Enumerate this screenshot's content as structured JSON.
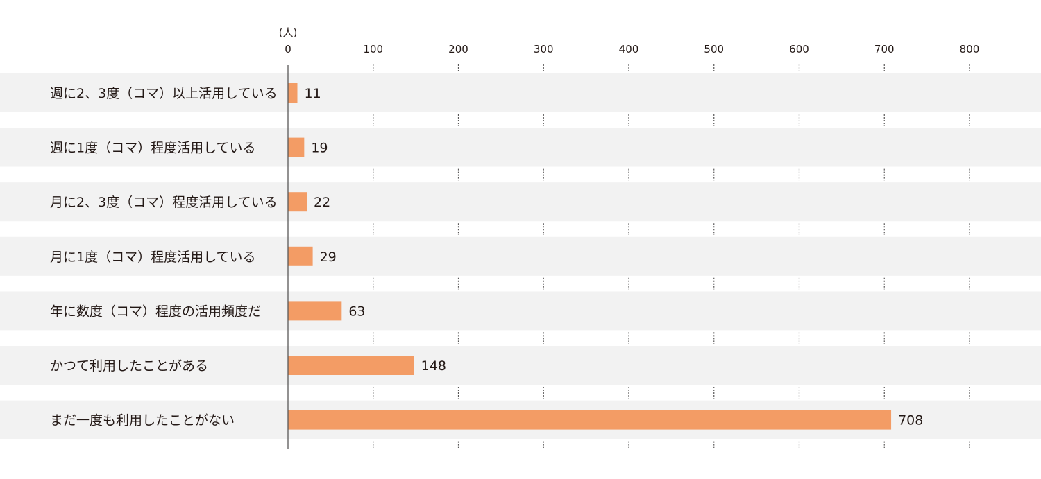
{
  "chart_data": {
    "type": "bar",
    "orientation": "horizontal",
    "unit": "(人)",
    "categories": [
      "週に2、3度（コマ）以上活用している",
      "週に1度（コマ）程度活用している",
      "月に2、3度（コマ）程度活用している",
      "月に1度（コマ）程度活用している",
      "年に数度（コマ）程度の活用頻度だ",
      "かつて利用したことがある",
      "まだ一度も利用したことがない"
    ],
    "values": [
      11,
      19,
      22,
      29,
      63,
      148,
      708
    ],
    "xlim": [
      0,
      800
    ],
    "ticks": [
      0,
      100,
      200,
      300,
      400,
      500,
      600,
      700,
      800
    ],
    "grid": "dotted-vertical-between-rows",
    "colors": {
      "bar": "#f39c65",
      "row_band": "#f2f2f2",
      "axis": "#595757",
      "grid": "#595757",
      "text": "#231815"
    }
  }
}
